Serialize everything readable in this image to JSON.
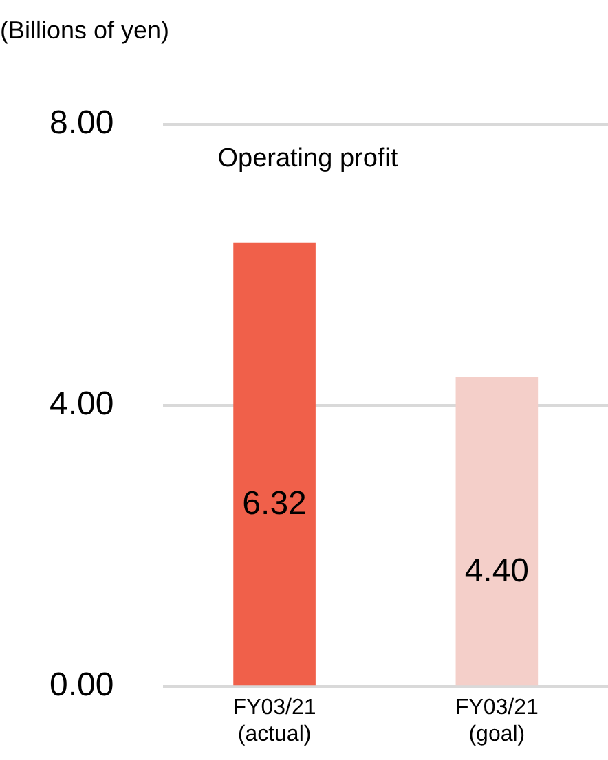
{
  "chart_data": {
    "type": "bar",
    "title": "Operating profit",
    "ylabel": "(Billions of yen)",
    "categories": [
      "FY03/21 (actual)",
      "FY03/21 (goal)"
    ],
    "values": [
      6.32,
      4.4
    ],
    "colors": [
      "#f0604a",
      "#f4cfc9"
    ],
    "value_labels": [
      "6.32",
      "4.40"
    ],
    "ylim": [
      0,
      8
    ],
    "yticks": [
      {
        "value": 0,
        "label": "0.00"
      },
      {
        "value": 4,
        "label": "4.00"
      },
      {
        "value": 8,
        "label": "8.00"
      }
    ],
    "grid": "y",
    "legend": false
  }
}
